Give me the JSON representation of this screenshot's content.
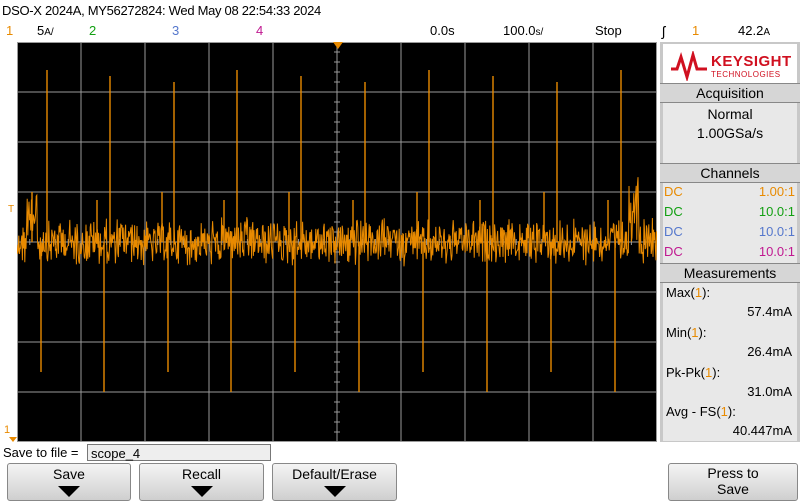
{
  "header": {
    "title": "DSO-X 2024A, MY56272824: Wed May 08 22:54:33 2024",
    "ch1_num": "1",
    "ch1_scale": "5",
    "ch2_num": "2",
    "ch3_num": "3",
    "ch4_num": "4",
    "time_pos": "0.0s",
    "time_scale": "100.0",
    "run_state": "Stop",
    "trig_ch": "1",
    "trig_level": "42.2"
  },
  "colors": {
    "ch1": "#e88a00",
    "ch2": "#12a012",
    "ch3": "#5577cc",
    "ch4": "#c01890",
    "grid": "#9a9a9a"
  },
  "brand": {
    "name": "KEYSIGHT",
    "sub": "TECHNOLOGIES"
  },
  "acquisition": {
    "title": "Acquisition",
    "mode": "Normal",
    "rate": "1.00GSa/s"
  },
  "channels": {
    "title": "Channels",
    "items": [
      {
        "coupling": "DC",
        "probe": "1.00:1"
      },
      {
        "coupling": "DC",
        "probe": "10.0:1"
      },
      {
        "coupling": "DC",
        "probe": "10.0:1"
      },
      {
        "coupling": "DC",
        "probe": "10.0:1"
      }
    ]
  },
  "measurements": {
    "title": "Measurements",
    "items": [
      {
        "label": "Max(",
        "ch": "1",
        "close": "):",
        "value": "57.4mA"
      },
      {
        "label": "Min(",
        "ch": "1",
        "close": "):",
        "value": "26.4mA"
      },
      {
        "label": "Pk-Pk(",
        "ch": "1",
        "close": "):",
        "value": "31.0mA"
      },
      {
        "label": "Avg - FS(",
        "ch": "1",
        "close": "):",
        "value": "40.447mA"
      }
    ]
  },
  "save": {
    "label": "Save to file =",
    "filename": "scope_4"
  },
  "buttons": {
    "save": "Save",
    "recall": "Recall",
    "default": "Default/Erase",
    "press1": "Press to",
    "press2": "Save"
  },
  "markers": {
    "trigger": "T",
    "ground": "1"
  }
}
